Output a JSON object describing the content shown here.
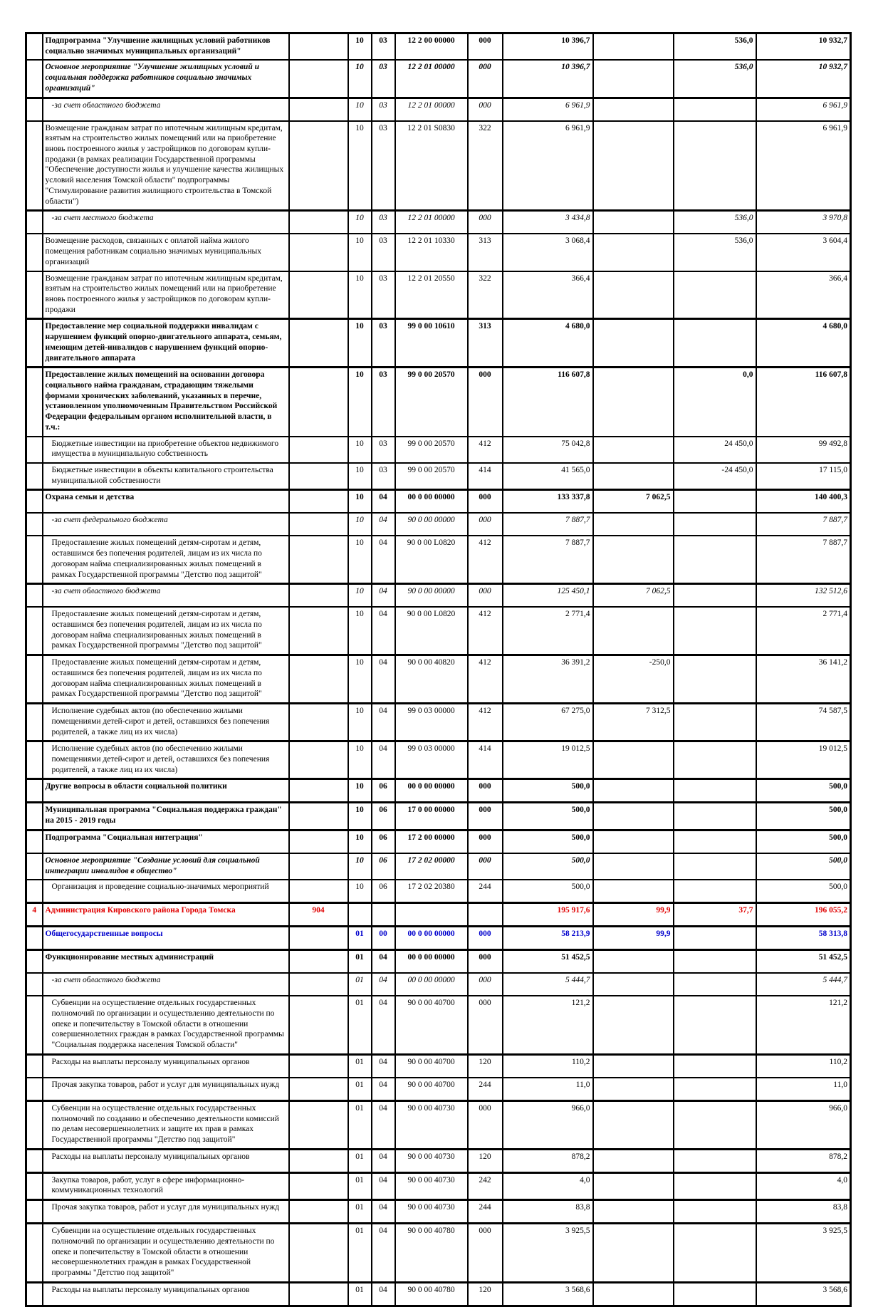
{
  "document": {
    "kind": "scanned budget appropriations table page (Russian municipal budget, Tomsk)",
    "page_background": "#ffffff"
  },
  "colors": {
    "text": "#000000",
    "grid": "#000000",
    "highlight_red": "#e00000",
    "highlight_blue": "#0000cd"
  },
  "table": {
    "columns": [
      {
        "key": "no",
        "semantic": "row-number"
      },
      {
        "key": "name",
        "semantic": "expense-name"
      },
      {
        "key": "ved",
        "semantic": "agency-code"
      },
      {
        "key": "rz",
        "semantic": "section-code"
      },
      {
        "key": "pr",
        "semantic": "subsection-code"
      },
      {
        "key": "csr",
        "semantic": "target-article-code"
      },
      {
        "key": "vr",
        "semantic": "expense-type-code"
      },
      {
        "key": "a1",
        "semantic": "amount-approved"
      },
      {
        "key": "a2",
        "semantic": "amount-change-1"
      },
      {
        "key": "a3",
        "semantic": "amount-change-2"
      },
      {
        "key": "total",
        "semantic": "amount-total"
      }
    ],
    "rows": [
      {
        "no": "",
        "name": "Подпрограмма \"Улучшение жилищных условий работников социально значимых муниципальных организаций\"",
        "ved": "",
        "rz": "10",
        "pr": "03",
        "csr": "12 2 00 00000",
        "vr": "000",
        "a1": "10 396,7",
        "a2": "",
        "a3": "536,0",
        "total": "10 932,7",
        "style": "bold",
        "ind": 0,
        "thick": false
      },
      {
        "no": "",
        "name": "Основное мероприятие \"Улучшение жилищных условий и социальная поддержка работников социально значимых организаций\"",
        "ved": "",
        "rz": "10",
        "pr": "03",
        "csr": "12 2 01 00000",
        "vr": "000",
        "a1": "10 396,7",
        "a2": "",
        "a3": "536,0",
        "total": "10 932,7",
        "style": "bolditalic",
        "ind": 0,
        "thick": false
      },
      {
        "no": "",
        "name": "-за счет областного бюджета",
        "ved": "",
        "rz": "10",
        "pr": "03",
        "csr": "12 2 01 00000",
        "vr": "000",
        "a1": "6 961,9",
        "a2": "",
        "a3": "",
        "total": "6 961,9",
        "style": "italic",
        "ind": 1,
        "thick": true
      },
      {
        "no": "",
        "name": "Возмещение гражданам затрат по ипотечным жилищным кредитам, взятым на строительство жилых помещений или на приобретение вновь построенного жилья у застройщиков по договорам купли-продажи (в рамках реализации Государственной программы \"Обеспечение доступности жилья и улучшение качества жилищных условий населения Томской области\" подпрограммы \"Стимулирование развития жилищного строительства в Томской области\")",
        "ved": "",
        "rz": "10",
        "pr": "03",
        "csr": "12 2 01 S0830",
        "vr": "322",
        "a1": "6 961,9",
        "a2": "",
        "a3": "",
        "total": "6 961,9",
        "style": "normal",
        "ind": 0,
        "thick": false
      },
      {
        "no": "",
        "name": "-за счет местного бюджета",
        "ved": "",
        "rz": "10",
        "pr": "03",
        "csr": "12 2 01 00000",
        "vr": "000",
        "a1": "3 434,8",
        "a2": "",
        "a3": "536,0",
        "total": "3 970,8",
        "style": "italic",
        "ind": 1,
        "thick": true
      },
      {
        "no": "",
        "name": "Возмещение расходов, связанных с оплатой найма жилого помещения работникам социально значимых муниципальных организаций",
        "ved": "",
        "rz": "10",
        "pr": "03",
        "csr": "12 2 01 10330",
        "vr": "313",
        "a1": "3 068,4",
        "a2": "",
        "a3": "536,0",
        "total": "3 604,4",
        "style": "normal",
        "ind": 0,
        "thick": false
      },
      {
        "no": "",
        "name": "Возмещение гражданам затрат по ипотечным жилищным кредитам, взятым на строительство жилых помещений или на приобретение вновь построенного жилья у застройщиков по договорам купли-продажи",
        "ved": "",
        "rz": "10",
        "pr": "03",
        "csr": "12 2 01 20550",
        "vr": "322",
        "a1": "366,4",
        "a2": "",
        "a3": "",
        "total": "366,4",
        "style": "normal",
        "ind": 0,
        "thick": false
      },
      {
        "no": "",
        "name": "Предоставление мер социальной поддержки инвалидам с нарушением функций опорно-двигательного аппарата, семьям, имеющим детей-инвалидов с нарушением функций опорно-двигательного аппарата",
        "ved": "",
        "rz": "10",
        "pr": "03",
        "csr": "99 0 00 10610",
        "vr": "313",
        "a1": "4 680,0",
        "a2": "",
        "a3": "",
        "total": "4 680,0",
        "style": "bold",
        "ind": 0,
        "thick": true
      },
      {
        "no": "",
        "name": "Предоставление жилых помещений на основании договора социального найма гражданам, страдающим тяжелыми формами хронических заболеваний, указанных в перечне, установленном уполномоченным Правительством Российской Федерации федеральным органом исполнительной власти, в т.ч.:",
        "ved": "",
        "rz": "10",
        "pr": "03",
        "csr": "99 0 00 20570",
        "vr": "000",
        "a1": "116 607,8",
        "a2": "",
        "a3": "0,0",
        "total": "116 607,8",
        "style": "bold",
        "ind": 0,
        "thick": true
      },
      {
        "no": "",
        "name": "Бюджетные инвестиции на приобретение объектов недвижимого имущества в муниципальную собственность",
        "ved": "",
        "rz": "10",
        "pr": "03",
        "csr": "99 0 00 20570",
        "vr": "412",
        "a1": "75 042,8",
        "a2": "",
        "a3": "24 450,0",
        "total": "99 492,8",
        "style": "normal",
        "ind": 1,
        "thick": false
      },
      {
        "no": "",
        "name": "Бюджетные инвестиции в объекты капитального строительства муниципальной собственности",
        "ved": "",
        "rz": "10",
        "pr": "03",
        "csr": "99 0 00 20570",
        "vr": "414",
        "a1": "41 565,0",
        "a2": "",
        "a3": "-24 450,0",
        "total": "17 115,0",
        "style": "normal",
        "ind": 1,
        "thick": false
      },
      {
        "no": "",
        "name": "Охрана семьи и детства",
        "ved": "",
        "rz": "10",
        "pr": "04",
        "csr": "00 0 00 00000",
        "vr": "000",
        "a1": "133 337,8",
        "a2": "7 062,5",
        "a3": "",
        "total": "140 400,3",
        "style": "bold",
        "ind": 0,
        "thick": true
      },
      {
        "no": "",
        "name": "-за счет федерального бюджета",
        "ved": "",
        "rz": "10",
        "pr": "04",
        "csr": "90 0 00 00000",
        "vr": "000",
        "a1": "7 887,7",
        "a2": "",
        "a3": "",
        "total": "7 887,7",
        "style": "italic",
        "ind": 1,
        "thick": false
      },
      {
        "no": "",
        "name": "Предоставление жилых помещений детям-сиротам и детям, оставшимся без попечения родителей, лицам из их числа по договорам найма специализированных жилых помещений в рамках Государственной программы \"Детство под защитой\"",
        "ved": "",
        "rz": "10",
        "pr": "04",
        "csr": "90 0 00 L0820",
        "vr": "412",
        "a1": "7 887,7",
        "a2": "",
        "a3": "",
        "total": "7 887,7",
        "style": "normal",
        "ind": 1,
        "thick": false
      },
      {
        "no": "",
        "name": "-за счет областного бюджета",
        "ved": "",
        "rz": "10",
        "pr": "04",
        "csr": "90 0 00 00000",
        "vr": "000",
        "a1": "125 450,1",
        "a2": "7 062,5",
        "a3": "",
        "total": "132 512,6",
        "style": "italic",
        "ind": 1,
        "thick": true
      },
      {
        "no": "",
        "name": "Предоставление жилых помещений детям-сиротам и детям, оставшимся без попечения родителей, лицам из их числа по договорам найма специализированных жилых помещений в рамках Государственной программы \"Детство под защитой\"",
        "ved": "",
        "rz": "10",
        "pr": "04",
        "csr": "90 0 00 L0820",
        "vr": "412",
        "a1": "2 771,4",
        "a2": "",
        "a3": "",
        "total": "2 771,4",
        "style": "normal",
        "ind": 1,
        "thick": false
      },
      {
        "no": "",
        "name": "Предоставление жилых помещений детям-сиротам и детям, оставшимся без попечения родителей, лицам из их числа по договорам найма специализированных жилых помещений в рамках Государственной программы \"Детство под защитой\"",
        "ved": "",
        "rz": "10",
        "pr": "04",
        "csr": "90 0 00 40820",
        "vr": "412",
        "a1": "36 391,2",
        "a2": "-250,0",
        "a3": "",
        "total": "36 141,2",
        "style": "normal",
        "ind": 1,
        "thick": true
      },
      {
        "no": "",
        "name": "Исполнение судебных актов (по обеспечению жилыми помещениями детей-сирот и детей, оставшихся без попечения родителей, а также лиц из их числа)",
        "ved": "",
        "rz": "10",
        "pr": "04",
        "csr": "99 0 03 00000",
        "vr": "412",
        "a1": "67 275,0",
        "a2": "7 312,5",
        "a3": "",
        "total": "74 587,5",
        "style": "normal",
        "ind": 1,
        "thick": true
      },
      {
        "no": "",
        "name": "Исполнение судебных актов (по обеспечению жилыми помещениями детей-сирот и детей, оставшихся без попечения родителей, а также лиц из их числа)",
        "ved": "",
        "rz": "10",
        "pr": "04",
        "csr": "99 0 03 00000",
        "vr": "414",
        "a1": "19 012,5",
        "a2": "",
        "a3": "",
        "total": "19 012,5",
        "style": "normal",
        "ind": 1,
        "thick": true
      },
      {
        "no": "",
        "name": "Другие вопросы в области социальной политики",
        "ved": "",
        "rz": "10",
        "pr": "06",
        "csr": "00 0 00 00000",
        "vr": "000",
        "a1": "500,0",
        "a2": "",
        "a3": "",
        "total": "500,0",
        "style": "bold",
        "ind": 0,
        "thick": true
      },
      {
        "no": "",
        "name": "Муниципальная программа \"Социальная поддержка граждан\" на 2015 - 2019 годы",
        "ved": "",
        "rz": "10",
        "pr": "06",
        "csr": "17 0 00 00000",
        "vr": "000",
        "a1": "500,0",
        "a2": "",
        "a3": "",
        "total": "500,0",
        "style": "bold",
        "ind": 0,
        "thick": true
      },
      {
        "no": "",
        "name": "Подпрограмма \"Социальная интеграция\"",
        "ved": "",
        "rz": "10",
        "pr": "06",
        "csr": "17 2 00 00000",
        "vr": "000",
        "a1": "500,0",
        "a2": "",
        "a3": "",
        "total": "500,0",
        "style": "bold",
        "ind": 0,
        "thick": true
      },
      {
        "no": "",
        "name": "Основное мероприятие \"Создание условий для социальной интеграции инвалидов в общество\"",
        "ved": "",
        "rz": "10",
        "pr": "06",
        "csr": "17 2 02 00000",
        "vr": "000",
        "a1": "500,0",
        "a2": "",
        "a3": "",
        "total": "500,0",
        "style": "bolditalic",
        "ind": 0,
        "thick": false
      },
      {
        "no": "",
        "name": "Организация и проведение социально-значимых мероприятий",
        "ved": "",
        "rz": "10",
        "pr": "06",
        "csr": "17 2 02 20380",
        "vr": "244",
        "a1": "500,0",
        "a2": "",
        "a3": "",
        "total": "500,0",
        "style": "normal",
        "ind": 1,
        "thick": false
      },
      {
        "no": "4",
        "name": "Администрация Кировского района Города Томска",
        "ved": "904",
        "rz": "",
        "pr": "",
        "csr": "",
        "vr": "",
        "a1": "195 917,6",
        "a2": "99,9",
        "a3": "37,7",
        "total": "196 055,2",
        "style": "red",
        "ind": 0,
        "thick": true
      },
      {
        "no": "",
        "name": "Общегосударственные вопросы",
        "ved": "",
        "rz": "01",
        "pr": "00",
        "csr": "00 0 00 00000",
        "vr": "000",
        "a1": "58 213,9",
        "a2": "99,9",
        "a3": "",
        "total": "58 313,8",
        "style": "blue",
        "ind": 0,
        "thick": true
      },
      {
        "no": "",
        "name": "Функционирование местных администраций",
        "ved": "",
        "rz": "01",
        "pr": "04",
        "csr": "00 0 00 00000",
        "vr": "000",
        "a1": "51 452,5",
        "a2": "",
        "a3": "",
        "total": "51 452,5",
        "style": "bold",
        "ind": 0,
        "thick": true
      },
      {
        "no": "",
        "name": "-за счет областного бюджета",
        "ved": "",
        "rz": "01",
        "pr": "04",
        "csr": "00 0 00 00000",
        "vr": "000",
        "a1": "5 444,7",
        "a2": "",
        "a3": "",
        "total": "5 444,7",
        "style": "italic",
        "ind": 1,
        "thick": false
      },
      {
        "no": "",
        "name": "Субвенции на осуществление отдельных государственных полномочий по организации и осуществлению деятельности по опеке и попечительству в Томской области в отношении совершеннолетних граждан в рамках Государственной программы \"Социальная поддержка населения Томской области\"",
        "ved": "",
        "rz": "01",
        "pr": "04",
        "csr": "90 0 00 40700",
        "vr": "000",
        "a1": "121,2",
        "a2": "",
        "a3": "",
        "total": "121,2",
        "style": "normal",
        "ind": 1,
        "thick": false
      },
      {
        "no": "",
        "name": "Расходы на выплаты персоналу муниципальных органов",
        "ved": "",
        "rz": "01",
        "pr": "04",
        "csr": "90 0 00 40700",
        "vr": "120",
        "a1": "110,2",
        "a2": "",
        "a3": "",
        "total": "110,2",
        "style": "normal",
        "ind": 1,
        "thick": true
      },
      {
        "no": "",
        "name": "Прочая закупка товаров, работ и услуг для муниципальных нужд",
        "ved": "",
        "rz": "01",
        "pr": "04",
        "csr": "90 0 00 40700",
        "vr": "244",
        "a1": "11,0",
        "a2": "",
        "a3": "",
        "total": "11,0",
        "style": "normal",
        "ind": 1,
        "thick": false
      },
      {
        "no": "",
        "name": "Субвенции на осуществление отдельных государственных полномочий по созданию и обеспечению деятельности комиссий по делам несовершеннолетних и защите их прав в рамках Государственной программы \"Детство под защитой\"",
        "ved": "",
        "rz": "01",
        "pr": "04",
        "csr": "90 0 00 40730",
        "vr": "000",
        "a1": "966,0",
        "a2": "",
        "a3": "",
        "total": "966,0",
        "style": "normal",
        "ind": 1,
        "thick": true
      },
      {
        "no": "",
        "name": "Расходы на выплаты персоналу муниципальных органов",
        "ved": "",
        "rz": "01",
        "pr": "04",
        "csr": "90 0 00 40730",
        "vr": "120",
        "a1": "878,2",
        "a2": "",
        "a3": "",
        "total": "878,2",
        "style": "normal",
        "ind": 1,
        "thick": true
      },
      {
        "no": "",
        "name": "Закупка товаров, работ, услуг в сфере информационно-коммуникационных технологий",
        "ved": "",
        "rz": "01",
        "pr": "04",
        "csr": "90 0 00 40730",
        "vr": "242",
        "a1": "4,0",
        "a2": "",
        "a3": "",
        "total": "4,0",
        "style": "normal",
        "ind": 1,
        "thick": true
      },
      {
        "no": "",
        "name": "Прочая закупка товаров, работ и услуг для муниципальных нужд",
        "ved": "",
        "rz": "01",
        "pr": "04",
        "csr": "90 0 00 40730",
        "vr": "244",
        "a1": "83,8",
        "a2": "",
        "a3": "",
        "total": "83,8",
        "style": "normal",
        "ind": 1,
        "thick": true
      },
      {
        "no": "",
        "name": "Субвенции на осуществление отдельных государственных полномочий по организации и осуществлению деятельности по опеке и попечительству в Томской области в отношении несовершеннолетних граждан в рамках Государственной программы \"Детство под защитой\"",
        "ved": "",
        "rz": "01",
        "pr": "04",
        "csr": "90 0 00 40780",
        "vr": "000",
        "a1": "3 925,5",
        "a2": "",
        "a3": "",
        "total": "3 925,5",
        "style": "normal",
        "ind": 1,
        "thick": true
      },
      {
        "no": "",
        "name": "Расходы на выплаты персоналу муниципальных органов",
        "ved": "",
        "rz": "01",
        "pr": "04",
        "csr": "90 0 00 40780",
        "vr": "120",
        "a1": "3 568,6",
        "a2": "",
        "a3": "",
        "total": "3 568,6",
        "style": "normal",
        "ind": 1,
        "thick": true
      }
    ]
  }
}
